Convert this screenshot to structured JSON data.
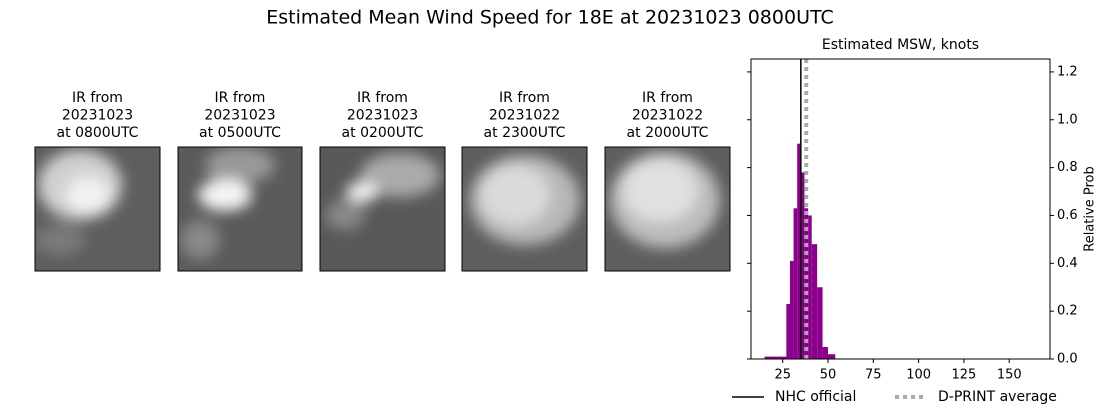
{
  "title": "Estimated Mean Wind Speed for 18E at 20231023 0800UTC",
  "panels": [
    {
      "lines": [
        "IR from",
        "20231023",
        "at 0800UTC"
      ]
    },
    {
      "lines": [
        "IR from",
        "20231023",
        "at 0500UTC"
      ]
    },
    {
      "lines": [
        "IR from",
        "20231023",
        "at 0200UTC"
      ]
    },
    {
      "lines": [
        "IR from",
        "20231022",
        "at 2300UTC"
      ]
    },
    {
      "lines": [
        "IR from",
        "20231022",
        "at 2000UTC"
      ]
    }
  ],
  "chart_data": {
    "type": "histogram",
    "title": "Estimated MSW, knots",
    "y_label": "Relative Prob",
    "bins": [
      15,
      27,
      29,
      31,
      33,
      35,
      37,
      39,
      41,
      44,
      47,
      50,
      54
    ],
    "values": [
      0.01,
      0.23,
      0.41,
      0.63,
      0.9,
      0.78,
      0.63,
      0.6,
      0.48,
      0.3,
      0.05,
      0.02
    ],
    "color": "#8b008b",
    "xlim": [
      7.5,
      172.5
    ],
    "xticks": [
      25,
      50,
      75,
      100,
      125,
      150
    ],
    "ylim": [
      0,
      1.254
    ],
    "yticks": [
      {
        "value": 0,
        "label": "0.0"
      },
      {
        "value": 0.2,
        "label": "0.2"
      },
      {
        "value": 0.4,
        "label": "0.4"
      },
      {
        "value": 0.6,
        "label": "0.6"
      },
      {
        "value": 0.8,
        "label": "0.8"
      },
      {
        "value": 1.0,
        "label": "1.0"
      },
      {
        "value": 1.2,
        "label": "1.2"
      }
    ],
    "lines": [
      {
        "name": "NHC official",
        "color": "#000000",
        "value": 35,
        "style": "solid"
      },
      {
        "name": "D-PRINT average",
        "color": "#aaaaaa",
        "value": 38,
        "style": "dotted"
      }
    ]
  }
}
